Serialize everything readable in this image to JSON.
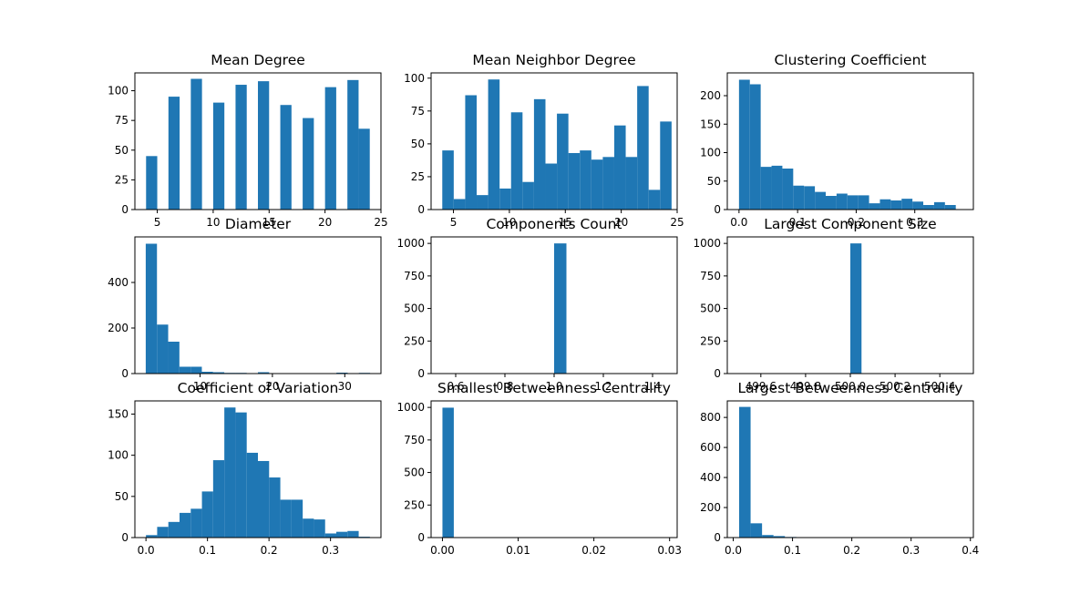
{
  "chart_data": [
    {
      "type": "bar",
      "title": "Mean Degree",
      "xlim": [
        3.0,
        25.0
      ],
      "ylim": [
        0,
        115
      ],
      "xticks": [
        5,
        10,
        15,
        20,
        25
      ],
      "xtick_labels": [
        "5",
        "10",
        "15",
        "20",
        "25"
      ],
      "yticks": [
        0,
        25,
        50,
        75,
        100
      ],
      "ytick_labels": [
        "0",
        "25",
        "50",
        "75",
        "100"
      ],
      "bin_start": 4.0,
      "bin_width": 1.0,
      "values": [
        45,
        0,
        95,
        0,
        110,
        0,
        90,
        0,
        105,
        0,
        108,
        0,
        88,
        0,
        77,
        0,
        103,
        0,
        109,
        68
      ],
      "bar_color": "#1f77b4"
    },
    {
      "type": "bar",
      "title": "Mean Neighbor Degree",
      "xlim": [
        3.0,
        25.0
      ],
      "ylim": [
        0,
        104
      ],
      "xticks": [
        5,
        10,
        15,
        20,
        25
      ],
      "xtick_labels": [
        "5",
        "10",
        "15",
        "20",
        "25"
      ],
      "yticks": [
        0,
        25,
        50,
        75,
        100
      ],
      "ytick_labels": [
        "0",
        "25",
        "50",
        "75",
        "100"
      ],
      "bin_start": 4.0,
      "bin_width": 1.025,
      "values": [
        45,
        8,
        87,
        11,
        99,
        16,
        74,
        21,
        84,
        35,
        73,
        43,
        45,
        38,
        40,
        64,
        40,
        94,
        15,
        67
      ],
      "bar_color": "#1f77b4"
    },
    {
      "type": "bar",
      "title": "Clustering Coefficient",
      "xlim": [
        -0.02,
        0.4
      ],
      "ylim": [
        0,
        240
      ],
      "xticks": [
        0.0,
        0.1,
        0.2,
        0.3
      ],
      "xtick_labels": [
        "0.0",
        "0.1",
        "0.2",
        "0.3"
      ],
      "yticks": [
        0,
        50,
        100,
        150,
        200
      ],
      "ytick_labels": [
        "0",
        "50",
        "100",
        "150",
        "200"
      ],
      "bin_start": 0.0,
      "bin_width": 0.0185,
      "values": [
        228,
        220,
        75,
        77,
        72,
        42,
        41,
        31,
        24,
        28,
        25,
        25,
        11,
        18,
        16,
        19,
        14,
        8,
        13,
        8
      ],
      "bar_color": "#1f77b4"
    },
    {
      "type": "bar",
      "title": "Diameter",
      "xlim": [
        1.0,
        35.0
      ],
      "ylim": [
        0,
        600
      ],
      "xticks": [
        10,
        20,
        30
      ],
      "xtick_labels": [
        "10",
        "20",
        "30"
      ],
      "yticks": [
        0,
        200,
        400
      ],
      "ytick_labels": [
        "0",
        "200",
        "400"
      ],
      "bin_start": 2.5,
      "bin_width": 1.55,
      "values": [
        570,
        215,
        140,
        30,
        30,
        8,
        6,
        3,
        3,
        2,
        6,
        1,
        1,
        1,
        1,
        1,
        1,
        4,
        1,
        3
      ],
      "bar_color": "#1f77b4"
    },
    {
      "type": "bar",
      "title": "Components Count",
      "xlim": [
        0.5,
        1.5
      ],
      "ylim": [
        0,
        1050
      ],
      "xticks": [
        0.6,
        0.8,
        1.0,
        1.2,
        1.4
      ],
      "xtick_labels": [
        "0.6",
        "0.8",
        "1.0",
        "1.2",
        "1.4"
      ],
      "yticks": [
        0,
        250,
        500,
        750,
        1000
      ],
      "ytick_labels": [
        "0",
        "250",
        "500",
        "750",
        "1000"
      ],
      "bin_start": 0.5,
      "bin_width": 0.05,
      "values": [
        0,
        0,
        0,
        0,
        0,
        0,
        0,
        0,
        0,
        0,
        1000,
        0,
        0,
        0,
        0,
        0,
        0,
        0,
        0,
        0
      ],
      "bar_color": "#1f77b4"
    },
    {
      "type": "bar",
      "title": "Largest Component Size",
      "xlim": [
        499.45,
        500.55
      ],
      "ylim": [
        0,
        1050
      ],
      "xticks": [
        499.6,
        499.8,
        500.0,
        500.2,
        500.4
      ],
      "xtick_labels": [
        "499.6",
        "499.8",
        "500.0",
        "500.2",
        "500.4"
      ],
      "yticks": [
        0,
        250,
        500,
        750,
        1000
      ],
      "ytick_labels": [
        "0",
        "250",
        "500",
        "750",
        "1000"
      ],
      "bin_start": 499.5,
      "bin_width": 0.05,
      "values": [
        0,
        0,
        0,
        0,
        0,
        0,
        0,
        0,
        0,
        0,
        1000,
        0,
        0,
        0,
        0,
        0,
        0,
        0,
        0,
        0
      ],
      "bar_color": "#1f77b4"
    },
    {
      "type": "bar",
      "title": "Coefficient of Variation",
      "xlim": [
        -0.018,
        0.382
      ],
      "ylim": [
        0,
        166
      ],
      "xticks": [
        0.0,
        0.1,
        0.2,
        0.3
      ],
      "xtick_labels": [
        "0.0",
        "0.1",
        "0.2",
        "0.3"
      ],
      "yticks": [
        0,
        50,
        100,
        150
      ],
      "ytick_labels": [
        "0",
        "50",
        "100",
        "150"
      ],
      "bin_start": 0.0,
      "bin_width": 0.0182,
      "values": [
        3,
        13,
        19,
        30,
        35,
        56,
        94,
        158,
        152,
        103,
        93,
        73,
        46,
        46,
        23,
        22,
        5,
        7,
        8,
        1
      ],
      "bar_color": "#1f77b4"
    },
    {
      "type": "bar",
      "title": "Smallest Betweenness Centrality",
      "xlim": [
        -0.0015,
        0.031
      ],
      "ylim": [
        0,
        1050
      ],
      "xticks": [
        0.0,
        0.01,
        0.02,
        0.03
      ],
      "xtick_labels": [
        "0.00",
        "0.01",
        "0.02",
        "0.03"
      ],
      "yticks": [
        0,
        250,
        500,
        750,
        1000
      ],
      "ytick_labels": [
        "0",
        "250",
        "500",
        "750",
        "1000"
      ],
      "bin_start": 0.0,
      "bin_width": 0.0015,
      "values": [
        998,
        0,
        0,
        0,
        0,
        0,
        0,
        0,
        0,
        0,
        0,
        0,
        0,
        0,
        0,
        0,
        0,
        0,
        0,
        1
      ],
      "bar_color": "#1f77b4"
    },
    {
      "type": "bar",
      "title": "Largest Betweenness Centrality",
      "xlim": [
        -0.01,
        0.405
      ],
      "ylim": [
        0,
        910
      ],
      "xticks": [
        0.0,
        0.1,
        0.2,
        0.3,
        0.4
      ],
      "xtick_labels": [
        "0.0",
        "0.1",
        "0.2",
        "0.3",
        "0.4"
      ],
      "yticks": [
        0,
        200,
        400,
        600,
        800
      ],
      "ytick_labels": [
        "0",
        "200",
        "400",
        "600",
        "800"
      ],
      "bin_start": 0.01,
      "bin_width": 0.0193,
      "values": [
        870,
        95,
        17,
        10,
        4,
        3,
        2,
        1,
        1,
        1,
        1,
        1,
        1,
        1,
        1,
        1,
        1,
        1,
        1,
        1
      ],
      "bar_color": "#1f77b4"
    }
  ]
}
